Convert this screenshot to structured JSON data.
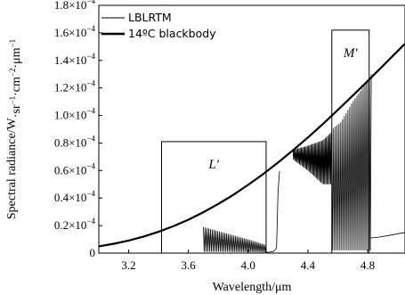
{
  "chart_data": {
    "type": "line",
    "xlabel": "Wavelength/μm",
    "ylabel_parts": [
      "Spectral radiance/W",
      "·sr",
      "−1",
      "·cm",
      "−2",
      "·μm",
      "−1"
    ],
    "xlim": [
      3.0,
      5.05
    ],
    "ylim": [
      0,
      0.00018
    ],
    "x_ticks": [
      {
        "value": 3.2,
        "label": "3.2"
      },
      {
        "value": 3.6,
        "label": "3.6"
      },
      {
        "value": 4.0,
        "label": "4.0"
      },
      {
        "value": 4.4,
        "label": "4.4"
      },
      {
        "value": 4.8,
        "label": "4.8"
      }
    ],
    "y_ticks": [
      {
        "value": 0,
        "mantissa": "0",
        "exp": ""
      },
      {
        "value": 2e-05,
        "mantissa": "0.2×10",
        "exp": "−4"
      },
      {
        "value": 4e-05,
        "mantissa": "0.4×10",
        "exp": "−4"
      },
      {
        "value": 6e-05,
        "mantissa": "0.6×10",
        "exp": "−4"
      },
      {
        "value": 8e-05,
        "mantissa": "0.8×10",
        "exp": "−4"
      },
      {
        "value": 0.0001,
        "mantissa": "1.0×10",
        "exp": "−4"
      },
      {
        "value": 0.00012,
        "mantissa": "1.2×10",
        "exp": "−4"
      },
      {
        "value": 0.00014,
        "mantissa": "1.4×10",
        "exp": "−4"
      },
      {
        "value": 0.00016,
        "mantissa": "1.6×10",
        "exp": "−4"
      },
      {
        "value": 0.00018,
        "mantissa": "1.8×10",
        "exp": "−4"
      }
    ],
    "legend": {
      "placement": "top-left",
      "entries": [
        {
          "name": "LBLRTM",
          "style": "thin"
        },
        {
          "name": "14ºC blackbody",
          "style": "thick"
        }
      ]
    },
    "series": [
      {
        "name": "14ºC blackbody",
        "style": "thick",
        "x": [
          3.0,
          3.1,
          3.2,
          3.3,
          3.4,
          3.5,
          3.6,
          3.7,
          3.8,
          3.9,
          4.0,
          4.1,
          4.2,
          4.3,
          4.4,
          4.5,
          4.6,
          4.7,
          4.8,
          4.9,
          5.0,
          5.05
        ],
        "y": [
          4.9e-06,
          6.8e-06,
          9.1e-06,
          1.2e-05,
          1.55e-05,
          1.96e-05,
          2.43e-05,
          2.97e-05,
          3.57e-05,
          4.23e-05,
          4.96e-05,
          5.74e-05,
          6.58e-05,
          7.47e-05,
          8.4e-05,
          9.38e-05,
          0.000104,
          0.0001144,
          0.000125,
          0.0001358,
          0.0001467,
          0.0001521
        ]
      },
      {
        "name": "LBLRTM",
        "style": "thin",
        "segments": [
          {
            "kind": "envelope",
            "x_start": 3.7,
            "x_end": 4.12,
            "period": 0.012,
            "upper": [
              [
                3.7,
                1.9e-05
              ],
              [
                3.8,
                1.6e-05
              ],
              [
                3.9,
                1.3e-05
              ],
              [
                4.0,
                1e-05
              ],
              [
                4.12,
                6e-06
              ]
            ],
            "lower": [
              [
                3.7,
                1e-06
              ],
              [
                4.12,
                5e-07
              ]
            ]
          },
          {
            "kind": "line",
            "points": [
              [
                4.12,
                5e-07
              ],
              [
                4.15,
                8e-07
              ],
              [
                4.17,
                1.2e-06
              ],
              [
                4.19,
                3.5e-06
              ],
              [
                4.2,
                4.5e-05
              ],
              [
                4.21,
                5.95e-05
              ]
            ]
          },
          {
            "kind": "envelope",
            "x_start": 4.3,
            "x_end": 4.56,
            "period": 0.008,
            "upper": [
              [
                4.3,
                7.5e-05
              ],
              [
                4.4,
                7.8e-05
              ],
              [
                4.5,
                8.2e-05
              ],
              [
                4.56,
                8.8e-05
              ]
            ],
            "lower": [
              [
                4.3,
                6.8e-05
              ],
              [
                4.4,
                6e-05
              ],
              [
                4.45,
                5.5e-05
              ],
              [
                4.5,
                5e-05
              ],
              [
                4.56,
                5e-05
              ]
            ]
          },
          {
            "kind": "envelope",
            "x_start": 4.56,
            "x_end": 4.82,
            "period": 0.012,
            "upper": [
              [
                4.56,
                9e-05
              ],
              [
                4.62,
                9.5e-05
              ],
              [
                4.7,
                0.00011
              ],
              [
                4.78,
                0.000122
              ],
              [
                4.82,
                0.00013
              ]
            ],
            "lower": [
              [
                4.56,
                2e-06
              ],
              [
                4.82,
                2e-06
              ]
            ]
          },
          {
            "kind": "line",
            "points": [
              [
                4.82,
                1.1e-05
              ],
              [
                4.87,
                1.15e-05
              ],
              [
                4.95,
                1.3e-05
              ],
              [
                5.05,
                1.5e-05
              ]
            ]
          }
        ]
      }
    ],
    "bands": [
      {
        "name": "L′",
        "x_range": [
          3.42,
          4.12
        ],
        "y_top": 8.1e-05
      },
      {
        "name": "M′",
        "x_range": [
          4.56,
          4.81
        ],
        "y_top": 0.000162
      }
    ]
  }
}
